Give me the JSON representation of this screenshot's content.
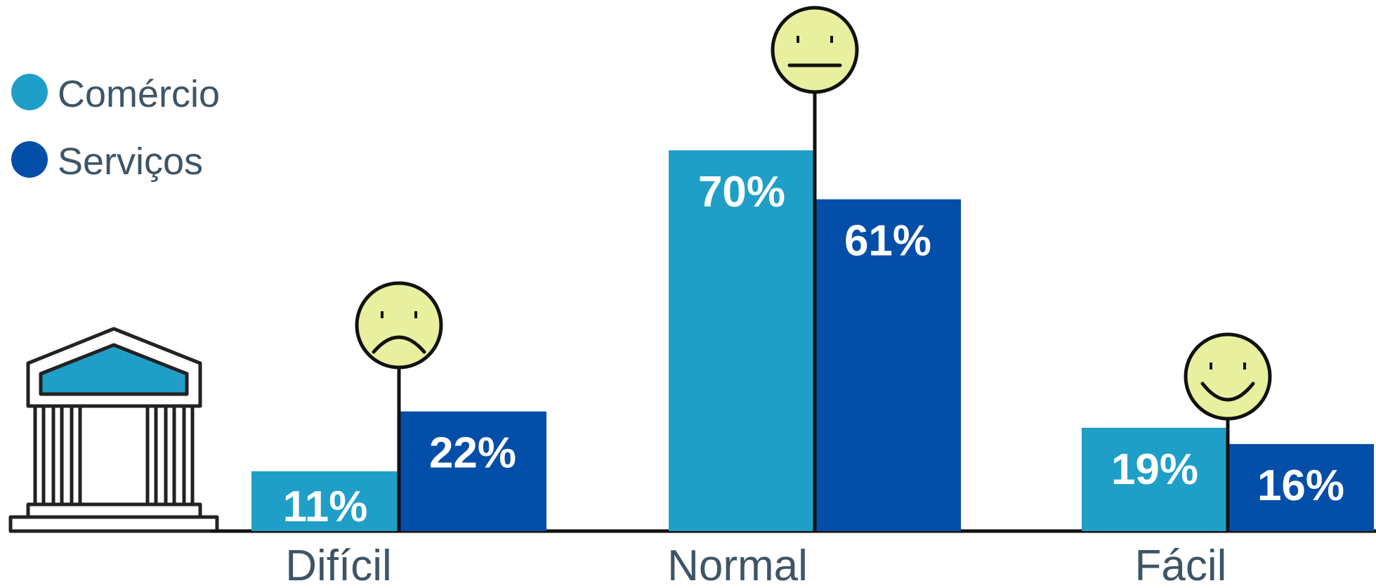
{
  "chart_data": {
    "type": "bar",
    "categories": [
      "Difícil",
      "Normal",
      "Fácil"
    ],
    "series": [
      {
        "name": "Comércio",
        "values": [
          11,
          70,
          19
        ],
        "labels": [
          "11%",
          "70%",
          "19%"
        ],
        "color": "#1f9fc8"
      },
      {
        "name": "Serviços",
        "values": [
          22,
          61,
          16
        ],
        "labels": [
          "22%",
          "61%",
          "16%"
        ],
        "color": "#034ea8"
      }
    ],
    "ylim": [
      0,
      70
    ],
    "legend_position": "top-left",
    "category_icons": [
      "sad-face-icon",
      "neutral-face-icon",
      "happy-face-icon"
    ],
    "colors": {
      "axis": "#111111",
      "text": "#3e5566",
      "face_fill": "#e8f0a0",
      "bank_roof": "#1f9fc8"
    },
    "decorations": [
      "bank-building-icon"
    ]
  }
}
